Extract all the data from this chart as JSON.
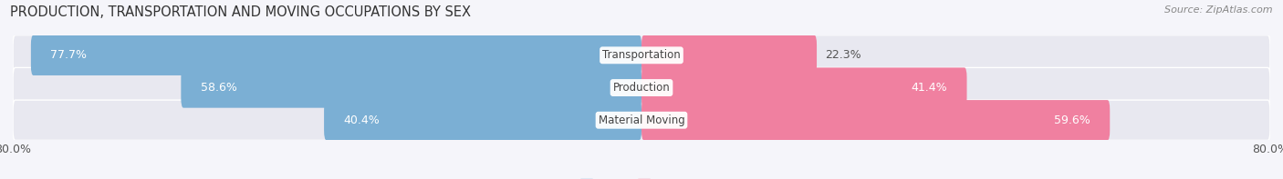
{
  "title": "PRODUCTION, TRANSPORTATION AND MOVING OCCUPATIONS BY SEX",
  "source": "Source: ZipAtlas.com",
  "categories": [
    "Transportation",
    "Production",
    "Material Moving"
  ],
  "male_values": [
    77.7,
    58.6,
    40.4
  ],
  "female_values": [
    22.3,
    41.4,
    59.6
  ],
  "male_color": "#7bafd4",
  "female_color": "#f080a0",
  "male_color_legend": "#7bafd4",
  "female_color_legend": "#f080a0",
  "bar_height": 0.62,
  "bar_bg_color": "#e8e8f0",
  "xlim": [
    -80,
    80
  ],
  "background_color": "#f5f5fa",
  "title_fontsize": 10.5,
  "source_fontsize": 8,
  "label_fontsize": 9,
  "category_fontsize": 8.5,
  "legend_fontsize": 9.5
}
